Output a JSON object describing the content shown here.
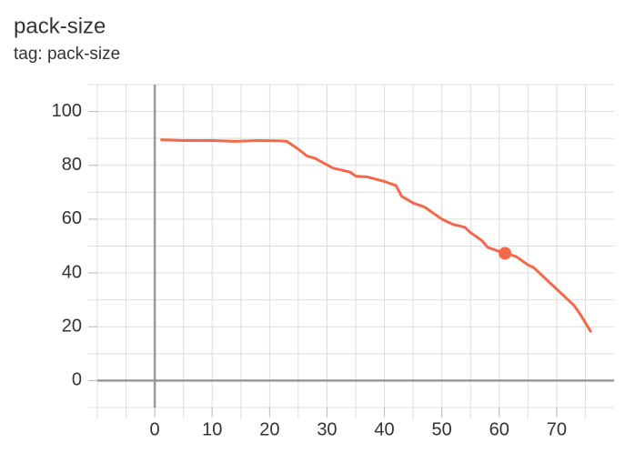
{
  "chart_data": {
    "type": "line",
    "title": "pack-size",
    "subtitle": "tag: pack-size",
    "xlim": [
      -10,
      80
    ],
    "ylim": [
      -10,
      110
    ],
    "xticks": [
      0,
      10,
      20,
      30,
      40,
      50,
      60,
      70
    ],
    "yticks": [
      0,
      20,
      40,
      60,
      80,
      100
    ],
    "xgrid": [
      -10,
      -5,
      0,
      5,
      10,
      15,
      20,
      25,
      30,
      35,
      40,
      45,
      50,
      55,
      60,
      65,
      70,
      75
    ],
    "ygrid": [
      -10,
      0,
      10,
      20,
      30,
      40,
      50,
      60,
      70,
      80,
      90,
      100,
      110
    ],
    "series": [
      {
        "name": "pack-size",
        "color": "#f4694a",
        "x": [
          1,
          5,
          10,
          14,
          18,
          22,
          23,
          25,
          26.5,
          28,
          31,
          34,
          35,
          37,
          40,
          42,
          43,
          45,
          47,
          50,
          52,
          54,
          55,
          57,
          58,
          60,
          61,
          63,
          65,
          66,
          68,
          70,
          72,
          73,
          74,
          76
        ],
        "values": [
          89.5,
          89.2,
          89.2,
          88.9,
          89.2,
          89.1,
          88.9,
          86,
          83.5,
          82.5,
          79,
          77.5,
          76,
          75.7,
          74,
          72.5,
          68.5,
          66,
          64.5,
          60,
          58,
          57,
          55,
          52,
          49.5,
          48,
          47.5,
          46,
          43,
          42,
          38,
          34,
          30,
          28,
          25,
          18
        ]
      }
    ],
    "highlight": {
      "x": 61,
      "y": 47.3
    }
  }
}
